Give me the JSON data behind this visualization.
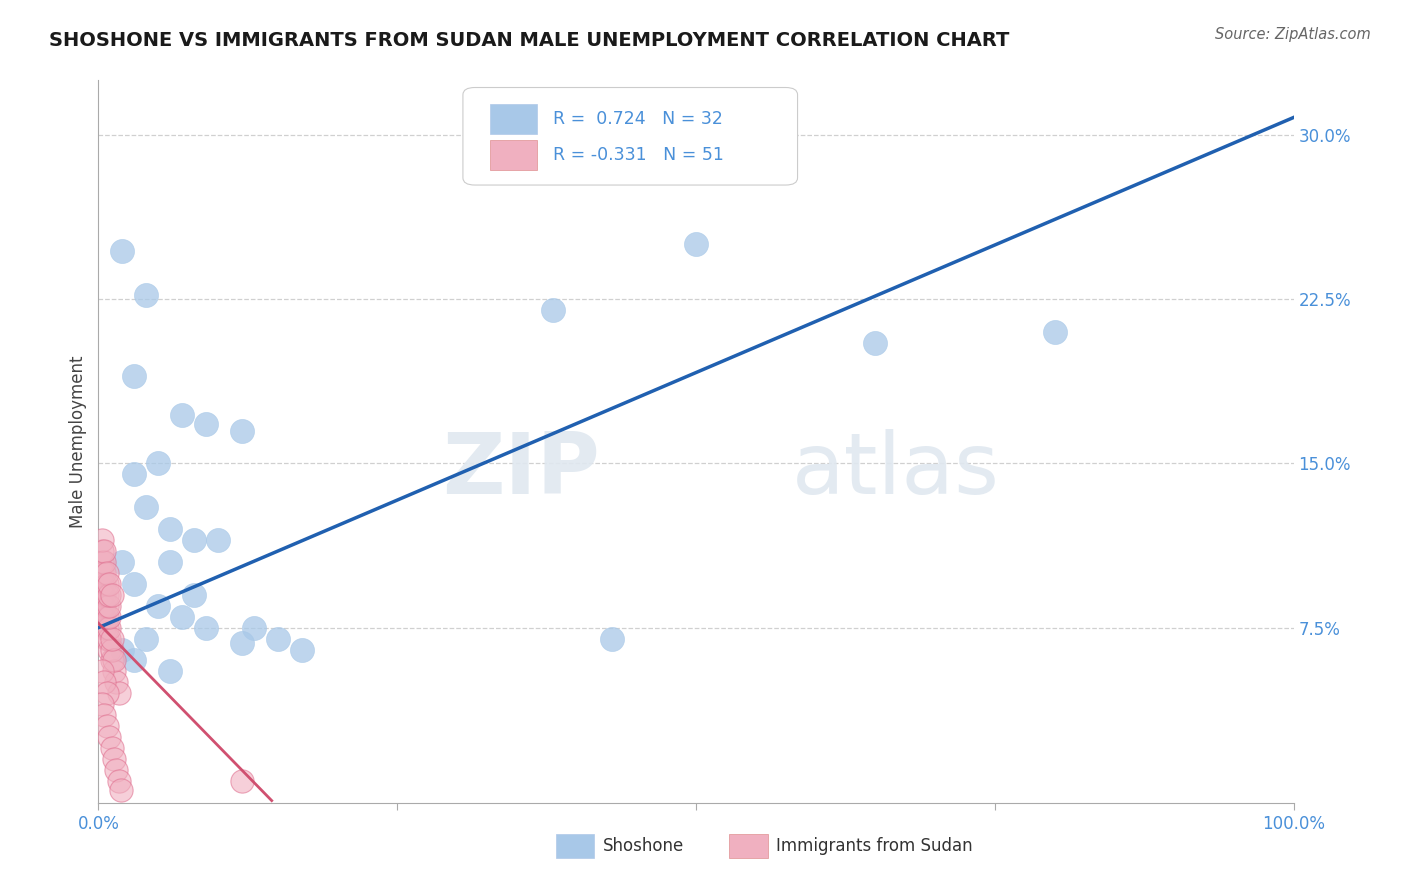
{
  "title": "SHOSHONE VS IMMIGRANTS FROM SUDAN MALE UNEMPLOYMENT CORRELATION CHART",
  "source": "Source: ZipAtlas.com",
  "ylabel": "Male Unemployment",
  "xlim": [
    0,
    1.0
  ],
  "ylim": [
    -0.005,
    0.325
  ],
  "yticks_right": [
    0.0,
    0.075,
    0.15,
    0.225,
    0.3
  ],
  "yticklabels_right": [
    "",
    "7.5%",
    "15.0%",
    "22.5%",
    "30.0%"
  ],
  "blue_R": 0.724,
  "blue_N": 32,
  "pink_R": -0.331,
  "pink_N": 51,
  "blue_color": "#a8c8e8",
  "blue_edge_color": "#a8c8e8",
  "blue_line_color": "#2060b0",
  "pink_color": "#f0b0c0",
  "pink_edge_color": "#e07090",
  "pink_line_color": "#d05070",
  "legend_blue_label": "Shoshone",
  "legend_pink_label": "Immigrants from Sudan",
  "watermark_zip": "ZIP",
  "watermark_atlas": "atlas",
  "blue_scatter_x": [
    0.02,
    0.04,
    0.03,
    0.07,
    0.09,
    0.12,
    0.05,
    0.03,
    0.04,
    0.06,
    0.08,
    0.1,
    0.06,
    0.02,
    0.03,
    0.05,
    0.07,
    0.09,
    0.04,
    0.02,
    0.38,
    0.5,
    0.65,
    0.8,
    0.43,
    0.13,
    0.15,
    0.12,
    0.17,
    0.08,
    0.06,
    0.03
  ],
  "blue_scatter_y": [
    0.247,
    0.227,
    0.19,
    0.172,
    0.168,
    0.165,
    0.15,
    0.145,
    0.13,
    0.12,
    0.115,
    0.115,
    0.105,
    0.105,
    0.095,
    0.085,
    0.08,
    0.075,
    0.07,
    0.065,
    0.22,
    0.25,
    0.205,
    0.21,
    0.07,
    0.075,
    0.07,
    0.068,
    0.065,
    0.09,
    0.055,
    0.06
  ],
  "pink_scatter_x": [
    0.003,
    0.005,
    0.007,
    0.009,
    0.011,
    0.013,
    0.015,
    0.017,
    0.003,
    0.005,
    0.007,
    0.009,
    0.011,
    0.013,
    0.003,
    0.005,
    0.007,
    0.009,
    0.011,
    0.003,
    0.005,
    0.007,
    0.009,
    0.003,
    0.005,
    0.007,
    0.003,
    0.005,
    0.007,
    0.009,
    0.011,
    0.013,
    0.015,
    0.017,
    0.019,
    0.003,
    0.005,
    0.007,
    0.009,
    0.003,
    0.005,
    0.007,
    0.009,
    0.003,
    0.005,
    0.003,
    0.005,
    0.007,
    0.009,
    0.011,
    0.12
  ],
  "pink_scatter_y": [
    0.08,
    0.075,
    0.07,
    0.065,
    0.06,
    0.055,
    0.05,
    0.045,
    0.085,
    0.08,
    0.075,
    0.07,
    0.065,
    0.06,
    0.09,
    0.085,
    0.08,
    0.075,
    0.07,
    0.095,
    0.09,
    0.085,
    0.08,
    0.055,
    0.05,
    0.045,
    0.04,
    0.035,
    0.03,
    0.025,
    0.02,
    0.015,
    0.01,
    0.005,
    0.001,
    0.1,
    0.095,
    0.09,
    0.085,
    0.105,
    0.1,
    0.095,
    0.09,
    0.11,
    0.105,
    0.115,
    0.11,
    0.1,
    0.095,
    0.09,
    0.005
  ],
  "blue_line_x": [
    0.0,
    1.0
  ],
  "blue_line_y": [
    0.075,
    0.308
  ],
  "pink_line_x": [
    0.0,
    0.145
  ],
  "pink_line_y": [
    0.077,
    -0.004
  ],
  "background_color": "#ffffff",
  "grid_color": "#d0d0d0",
  "title_color": "#1a1a1a",
  "axis_label_color": "#444444",
  "tick_color": "#4a90d9",
  "r_value_color": "#4a90d9",
  "n_value_color": "#4a90d9"
}
